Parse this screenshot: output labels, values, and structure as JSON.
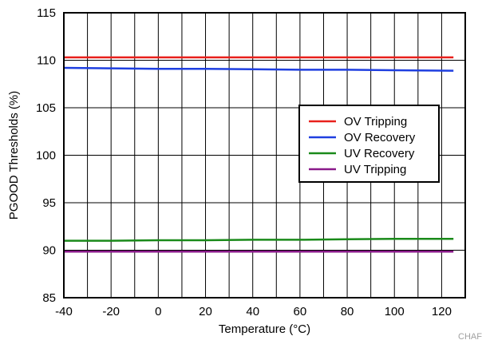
{
  "chart_data": {
    "type": "line",
    "title": "",
    "xlabel": "Temperature (°C)",
    "ylabel": "PGOOD Thresholds (%)",
    "xlim": [
      -40,
      130
    ],
    "ylim": [
      85,
      115
    ],
    "xticks": [
      -40,
      -20,
      0,
      20,
      40,
      60,
      80,
      100,
      120
    ],
    "yticks": [
      85,
      90,
      95,
      100,
      105,
      110,
      115
    ],
    "grid": true,
    "legend_position": "center-right",
    "x": [
      -40,
      -20,
      0,
      20,
      40,
      60,
      80,
      100,
      125
    ],
    "series": [
      {
        "name": "OV Tripping",
        "color": "#e8201c",
        "values": [
          110.3,
          110.3,
          110.3,
          110.3,
          110.3,
          110.3,
          110.3,
          110.3,
          110.3
        ]
      },
      {
        "name": "OV Recovery",
        "color": "#1f3fe0",
        "values": [
          109.2,
          109.15,
          109.1,
          109.1,
          109.05,
          109.0,
          109.0,
          108.95,
          108.9
        ]
      },
      {
        "name": "UV Recovery",
        "color": "#1a8a1a",
        "values": [
          91.0,
          91.0,
          91.05,
          91.05,
          91.1,
          91.1,
          91.15,
          91.2,
          91.2
        ]
      },
      {
        "name": "UV Tripping",
        "color": "#8a1a8a",
        "values": [
          89.85,
          89.85,
          89.85,
          89.85,
          89.85,
          89.85,
          89.85,
          89.85,
          89.85
        ]
      }
    ]
  },
  "watermark": "CHAF"
}
